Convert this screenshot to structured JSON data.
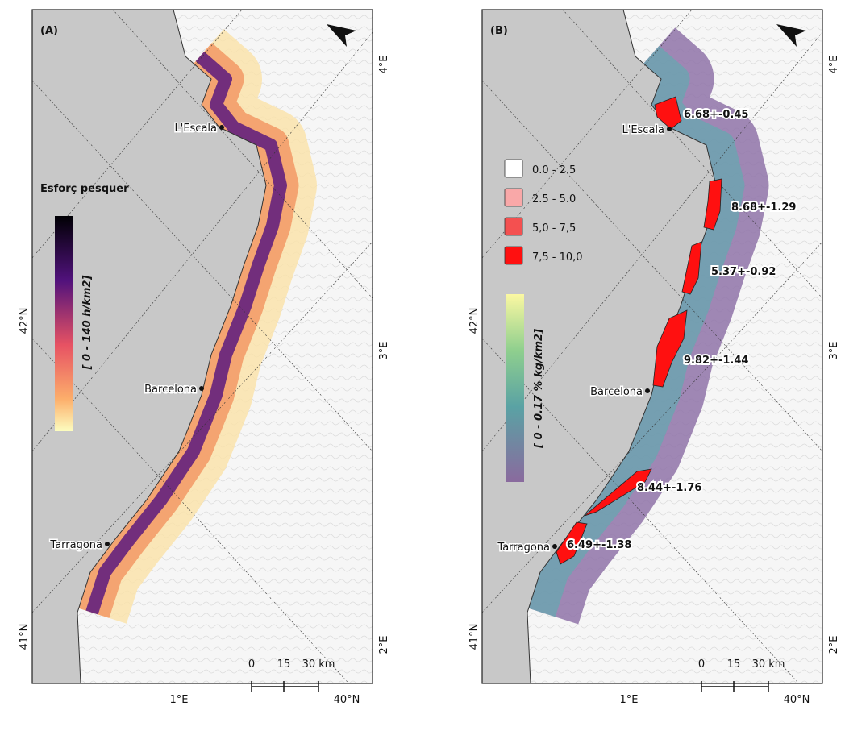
{
  "panels": [
    {
      "label": "(A)",
      "places": [
        "L'Escala",
        "Barcelona",
        "Tarragona"
      ],
      "legend_title": "Esforç pesquer",
      "colorbar_label": "[ 0 - 140 h/km2]",
      "scale_labels": [
        "0",
        "15",
        "30 km"
      ],
      "lat_labels": [
        "42°N",
        "41°N"
      ],
      "lon_bottom_labels": [
        "1°E",
        "40°N"
      ],
      "lon_right_labels": [
        "4°E",
        "3°E",
        "2°E"
      ]
    },
    {
      "label": "(B)",
      "places": [
        "L'Escala",
        "Barcelona",
        "Tarragona"
      ],
      "legend": [
        "0.0 - 2.5",
        "2.5 - 5.0",
        "5,0 - 7,5",
        "7,5 - 10,0"
      ],
      "colorbar_label": "[ 0 - 0.17 % kg/km2]",
      "annotations": [
        "6.68+-0.45",
        "8.68+-1.29",
        "5.37+-0.92",
        "9.82+-1.44",
        "8.44+-1.76",
        "6.49+-1.38"
      ],
      "scale_labels": [
        "0",
        "15",
        "30 km"
      ],
      "lat_labels": [
        "42°N",
        "41°N"
      ],
      "lon_bottom_labels": [
        "1°E",
        "40°N"
      ],
      "lon_right_labels": [
        "4°E",
        "3°E",
        "2°E"
      ]
    }
  ]
}
